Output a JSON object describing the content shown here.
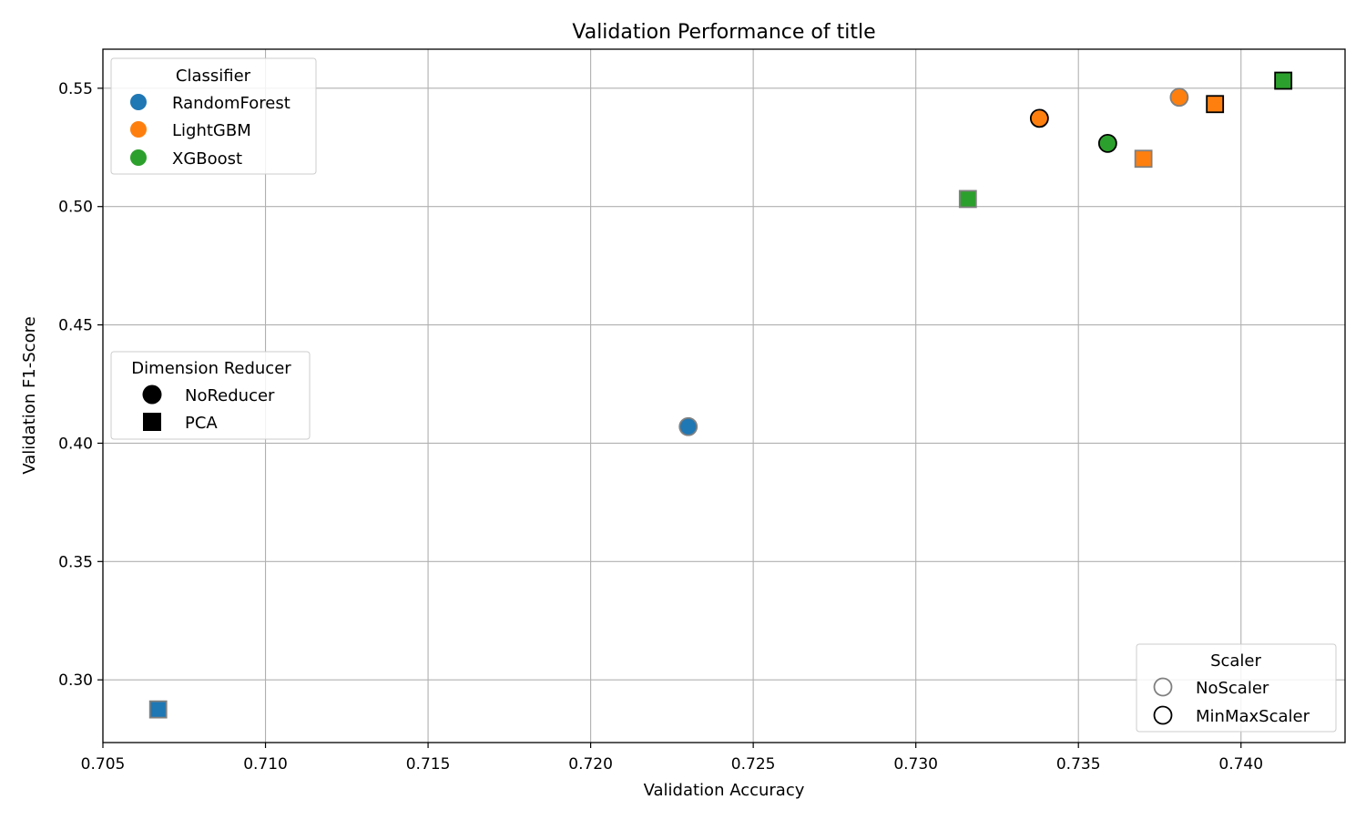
{
  "chart_data": {
    "type": "scatter",
    "title": "Validation Performance of title",
    "xlabel": "Validation Accuracy",
    "ylabel": "Validation F1-Score",
    "xlim": [
      0.705,
      0.7432
    ],
    "ylim": [
      0.2735,
      0.5665
    ],
    "x_ticks": [
      0.705,
      0.71,
      0.715,
      0.72,
      0.725,
      0.73,
      0.735,
      0.74
    ],
    "y_ticks": [
      0.3,
      0.35,
      0.4,
      0.45,
      0.5,
      0.55
    ],
    "grid": true,
    "colors": {
      "RandomForest": "#1f77b4",
      "LightGBM": "#ff7f0e",
      "XGBoost": "#2ca02c",
      "NoScaler_edge": "#808080",
      "MinMaxScaler_edge": "#000000"
    },
    "points": [
      {
        "x": 0.7067,
        "y": 0.2875,
        "classifier": "RandomForest",
        "reducer": "PCA",
        "scaler": "NoScaler"
      },
      {
        "x": 0.723,
        "y": 0.407,
        "classifier": "RandomForest",
        "reducer": "NoReducer",
        "scaler": "NoScaler"
      },
      {
        "x": 0.7316,
        "y": 0.5032,
        "classifier": "XGBoost",
        "reducer": "PCA",
        "scaler": "NoScaler"
      },
      {
        "x": 0.7338,
        "y": 0.5373,
        "classifier": "LightGBM",
        "reducer": "NoReducer",
        "scaler": "MinMaxScaler"
      },
      {
        "x": 0.7359,
        "y": 0.5267,
        "classifier": "XGBoost",
        "reducer": "NoReducer",
        "scaler": "MinMaxScaler"
      },
      {
        "x": 0.737,
        "y": 0.5202,
        "classifier": "LightGBM",
        "reducer": "PCA",
        "scaler": "NoScaler"
      },
      {
        "x": 0.7381,
        "y": 0.5462,
        "classifier": "LightGBM",
        "reducer": "NoReducer",
        "scaler": "NoScaler"
      },
      {
        "x": 0.7392,
        "y": 0.5433,
        "classifier": "LightGBM",
        "reducer": "PCA",
        "scaler": "MinMaxScaler"
      },
      {
        "x": 0.7413,
        "y": 0.5532,
        "classifier": "XGBoost",
        "reducer": "PCA",
        "scaler": "MinMaxScaler"
      }
    ],
    "legends": {
      "classifier": {
        "title": "Classifier",
        "placement": "top-left",
        "items": [
          "RandomForest",
          "LightGBM",
          "XGBoost"
        ]
      },
      "reducer": {
        "title": "Dimension Reducer",
        "placement": "center-left",
        "items": [
          "NoReducer",
          "PCA"
        ]
      },
      "scaler": {
        "title": "Scaler",
        "placement": "bottom-right",
        "items": [
          "NoScaler",
          "MinMaxScaler"
        ]
      }
    }
  }
}
